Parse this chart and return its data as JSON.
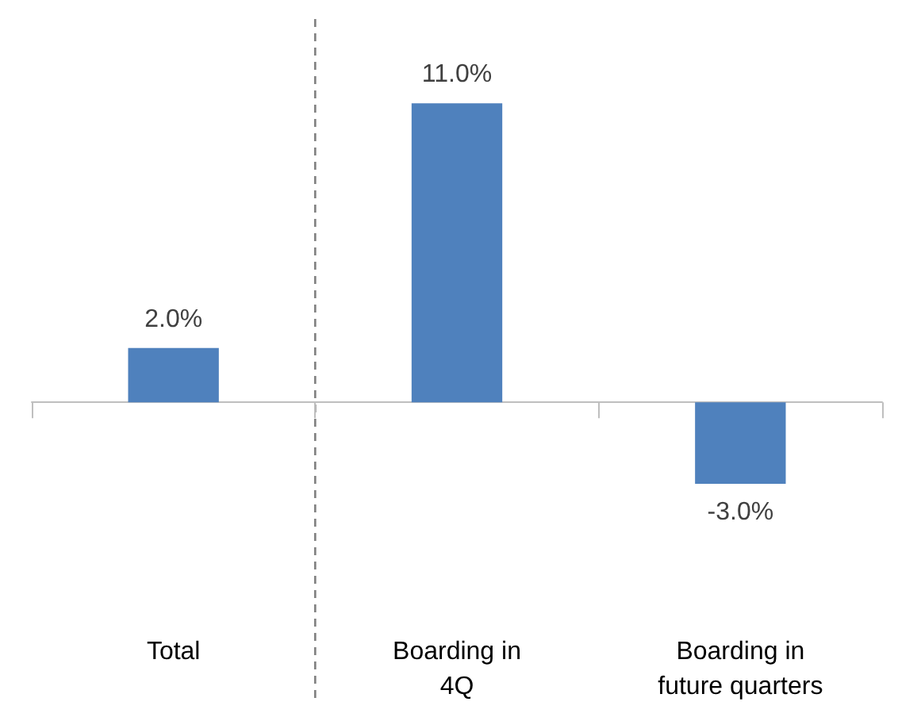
{
  "chart_data": {
    "type": "bar",
    "categories": [
      "Total",
      "Boarding in\n4Q",
      "Boarding in\nfuture quarters"
    ],
    "values": [
      2.0,
      11.0,
      -3.0
    ],
    "color": "#4f81bd",
    "value_labels": [
      "2.0%",
      "11.0%",
      "-3.0%"
    ]
  }
}
